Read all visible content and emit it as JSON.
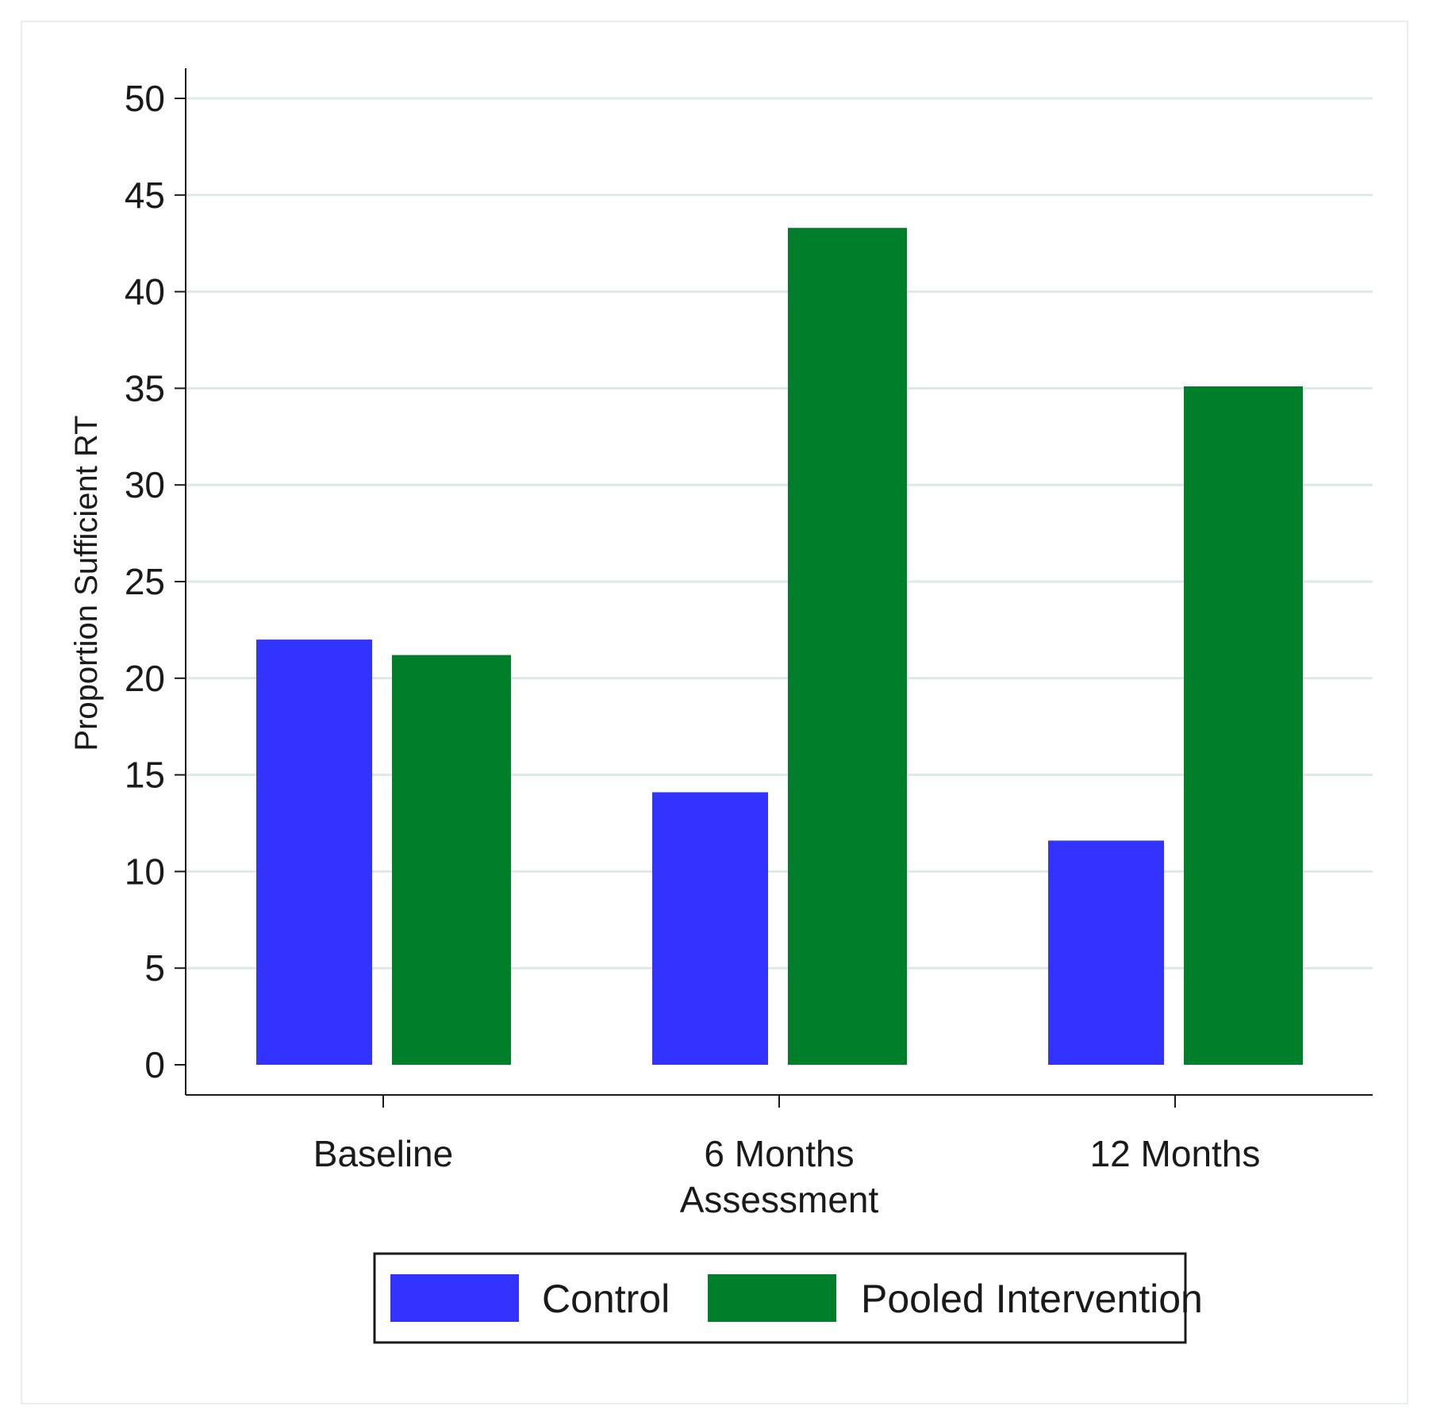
{
  "chart_data": {
    "type": "bar",
    "ylabel": "Proportion Sufficient RT",
    "ylim": [
      0,
      50
    ],
    "yticks": [
      0,
      5,
      10,
      15,
      20,
      25,
      30,
      35,
      40,
      45,
      50
    ],
    "grid": true,
    "categories": [
      {
        "label_lines": [
          "Baseline"
        ]
      },
      {
        "label_lines": [
          "6 Months",
          "Assessment"
        ]
      },
      {
        "label_lines": [
          "12 Months"
        ]
      }
    ],
    "series": [
      {
        "name": "Control",
        "color": "#3333ff",
        "values": [
          22.0,
          14.1,
          11.6
        ]
      },
      {
        "name": "Pooled Intervention",
        "color": "#007f2a",
        "values": [
          21.2,
          43.3,
          35.1
        ]
      }
    ],
    "legend_position": "bottom"
  }
}
